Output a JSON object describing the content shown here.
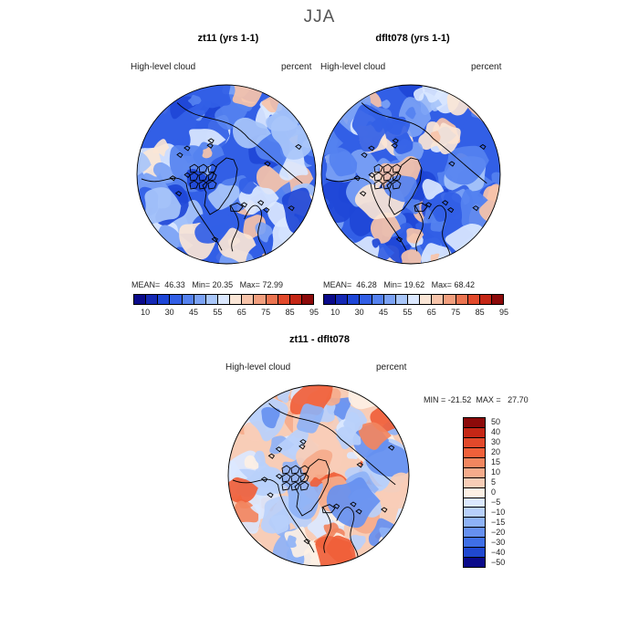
{
  "suptitle": "JJA",
  "panels": [
    {
      "title": "zt11 (yrs 1-1)",
      "var_label": "High-level cloud",
      "unit_label": "percent",
      "stats": {
        "mean_label": "MEAN=",
        "mean": "46.33",
        "min_label": "Min=",
        "min": "20.35",
        "max_label": "Max=",
        "max": "72.99"
      }
    },
    {
      "title": "dflt078 (yrs 1-1)",
      "var_label": "High-level cloud",
      "unit_label": "percent",
      "stats": {
        "mean_label": "MEAN=",
        "mean": "46.28",
        "min_label": "Min=",
        "min": "19.62",
        "max_label": "Max=",
        "max": "68.42"
      }
    },
    {
      "title": "zt11 - dflt078",
      "var_label": "High-level cloud",
      "unit_label": "percent",
      "stats": {
        "min_label": "MIN =",
        "min": "-21.52",
        "max_label": "MAX =",
        "max": "27.70"
      }
    }
  ],
  "colorbar_abs": {
    "colors": [
      "#0a0a8a",
      "#1428b4",
      "#1e46d7",
      "#325fe6",
      "#5582f0",
      "#7ba2f5",
      "#a8c6fa",
      "#dbe8ff",
      "#fbe6d6",
      "#f7c3a9",
      "#f29f7e",
      "#ec7450",
      "#e2492b",
      "#c52716",
      "#8c0a0a"
    ],
    "ticks": [
      "10",
      "30",
      "45",
      "55",
      "65",
      "75",
      "85",
      "95"
    ]
  },
  "colorbar_diff": {
    "colors": [
      "#8c0a0a",
      "#c52716",
      "#e2492b",
      "#f0603a",
      "#f2865f",
      "#f5ab8b",
      "#f8cdb7",
      "#fdf0e4",
      "#dbe8ff",
      "#b8d0fb",
      "#8eb2f6",
      "#6690f0",
      "#3f6fe6",
      "#2048d0",
      "#0a0a8a"
    ],
    "ticks": [
      "50",
      "40",
      "30",
      "20",
      "15",
      "10",
      "5",
      "0",
      "−5",
      "−10",
      "−15",
      "−20",
      "−30",
      "−40",
      "−50"
    ]
  }
}
